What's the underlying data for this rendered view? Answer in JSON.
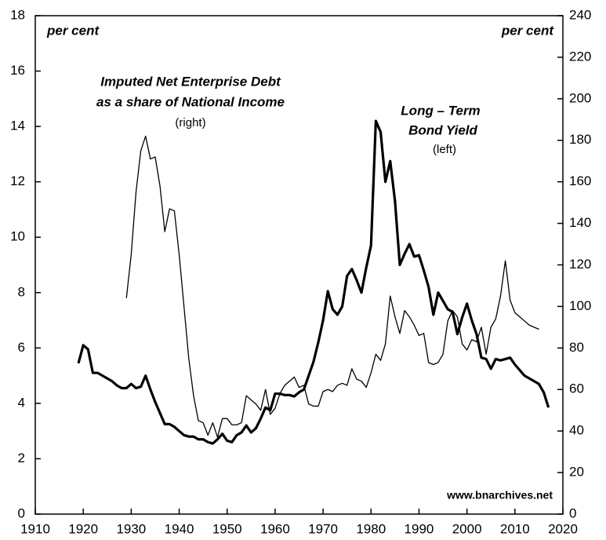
{
  "chart_data": {
    "type": "line",
    "annotations": [
      "Imputed Net Enterprise Debt",
      "as a share of National Income",
      "(right)",
      "Long – Term",
      "Bond Yield",
      "(left)"
    ],
    "y_label": "per cent",
    "y2_label": "per cent",
    "source": "www.bnarchives.net",
    "xlim": [
      1910,
      2020
    ],
    "xticks": [
      1910,
      1920,
      1930,
      1940,
      1950,
      1960,
      1970,
      1980,
      1990,
      2000,
      2010,
      2020
    ],
    "ylim": [
      0,
      18
    ],
    "yticks": [
      0,
      2,
      4,
      6,
      8,
      10,
      12,
      14,
      16,
      18
    ],
    "y2lim": [
      0,
      240
    ],
    "y2ticks": [
      0,
      20,
      40,
      60,
      80,
      100,
      120,
      140,
      160,
      180,
      200,
      220,
      240
    ],
    "series": [
      {
        "name": "Long – Term Bond Yield",
        "color": "#000000",
        "axis": "y",
        "x": [
          1919,
          1920,
          1921,
          1922,
          1923,
          1924,
          1925,
          1926,
          1927,
          1928,
          1929,
          1930,
          1931,
          1932,
          1933,
          1934,
          1935,
          1936,
          1937,
          1938,
          1939,
          1940,
          1941,
          1942,
          1943,
          1944,
          1945,
          1946,
          1947,
          1948,
          1949,
          1950,
          1951,
          1952,
          1953,
          1954,
          1955,
          1956,
          1957,
          1958,
          1959,
          1960,
          1961,
          1962,
          1963,
          1964,
          1965,
          1966,
          1967,
          1968,
          1969,
          1970,
          1971,
          1972,
          1973,
          1974,
          1975,
          1976,
          1977,
          1978,
          1979,
          1980,
          1981,
          1982,
          1983,
          1984,
          1985,
          1986,
          1987,
          1988,
          1989,
          1990,
          1991,
          1992,
          1993,
          1994,
          1995,
          1996,
          1997,
          1998,
          1999,
          2000,
          2001,
          2002,
          2003,
          2004,
          2005,
          2006,
          2007,
          2008,
          2009,
          2010,
          2011,
          2012,
          2013,
          2014,
          2015,
          2016,
          2017
        ],
        "values": [
          5.45,
          6.1,
          5.95,
          5.1,
          5.1,
          5.0,
          4.9,
          4.8,
          4.65,
          4.55,
          4.55,
          4.7,
          4.55,
          4.6,
          5.0,
          4.5,
          4.05,
          3.65,
          3.25,
          3.25,
          3.15,
          3.0,
          2.85,
          2.8,
          2.8,
          2.7,
          2.7,
          2.6,
          2.55,
          2.7,
          2.9,
          2.65,
          2.6,
          2.85,
          2.95,
          3.2,
          2.95,
          3.1,
          3.45,
          3.85,
          3.75,
          4.35,
          4.35,
          4.3,
          4.3,
          4.25,
          4.4,
          4.5,
          5.0,
          5.5,
          6.2,
          7.0,
          8.05,
          7.4,
          7.2,
          7.5,
          8.6,
          8.85,
          8.45,
          8.0,
          8.9,
          9.7,
          14.2,
          13.8,
          12.0,
          12.75,
          11.3,
          9.0,
          9.4,
          9.75,
          9.3,
          9.35,
          8.8,
          8.2,
          7.2,
          8.0,
          7.7,
          7.4,
          7.3,
          6.5,
          7.1,
          7.6,
          7.0,
          6.5,
          5.65,
          5.6,
          5.25,
          5.6,
          5.55,
          5.6,
          5.65,
          5.4,
          5.2,
          5.0,
          4.9,
          4.8,
          4.7,
          4.4,
          3.85
        ]
      },
      {
        "name": "Imputed Net Enterprise Debt as a share of National Income",
        "color": "#000000",
        "axis": "y2",
        "x": [
          1929,
          1930,
          1931,
          1932,
          1933,
          1934,
          1935,
          1936,
          1937,
          1938,
          1939,
          1940,
          1941,
          1942,
          1943,
          1944,
          1945,
          1946,
          1947,
          1948,
          1949,
          1950,
          1951,
          1952,
          1953,
          1954,
          1955,
          1956,
          1957,
          1958,
          1959,
          1960,
          1961,
          1962,
          1963,
          1964,
          1965,
          1966,
          1967,
          1968,
          1969,
          1970,
          1971,
          1972,
          1973,
          1974,
          1975,
          1976,
          1977,
          1978,
          1979,
          1980,
          1981,
          1982,
          1983,
          1984,
          1985,
          1986,
          1987,
          1988,
          1989,
          1990,
          1991,
          1992,
          1993,
          1994,
          1995,
          1996,
          1997,
          1998,
          1999,
          2000,
          2001,
          2002,
          2003,
          2004,
          2005,
          2006,
          2007,
          2008,
          2009,
          2010,
          2011,
          2012,
          2013,
          2014,
          2015
        ],
        "values": [
          104,
          125,
          155,
          175,
          182,
          171,
          172,
          158,
          136,
          147,
          146,
          125,
          100,
          75,
          57,
          45,
          44,
          38,
          44,
          37,
          46,
          46,
          43,
          43,
          44,
          57,
          55,
          53,
          50,
          60,
          48,
          51,
          58,
          62,
          64,
          66,
          61,
          62,
          53,
          52,
          52,
          59,
          60,
          59,
          62,
          63,
          62,
          70,
          65,
          64,
          61,
          68,
          77,
          74,
          82,
          105,
          95,
          87,
          98,
          95,
          91,
          86,
          87,
          73,
          72,
          73,
          77,
          93,
          98,
          95,
          82,
          79,
          84,
          83,
          90,
          77,
          90,
          94,
          105,
          122,
          103,
          97,
          95,
          93,
          91,
          90,
          89
        ]
      }
    ]
  }
}
